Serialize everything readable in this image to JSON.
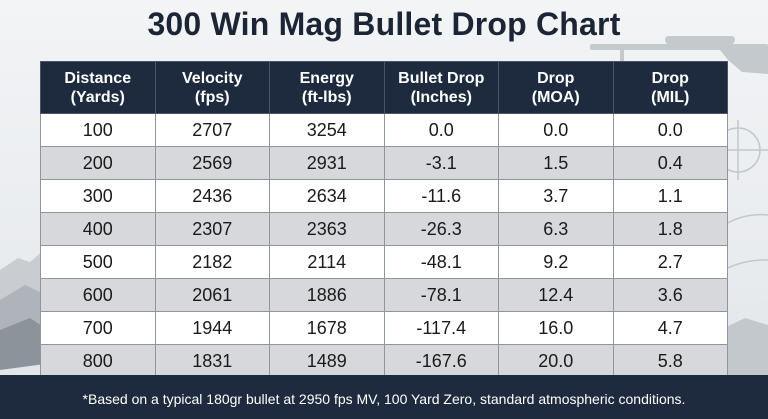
{
  "chart_data": {
    "type": "table",
    "title": "300 Win Mag Bullet Drop Chart",
    "columns": [
      [
        "Distance",
        "(Yards)"
      ],
      [
        "Velocity",
        "(fps)"
      ],
      [
        "Energy",
        "(ft-lbs)"
      ],
      [
        "Bullet Drop",
        "(Inches)"
      ],
      [
        "Drop",
        "(MOA)"
      ],
      [
        "Drop",
        "(MIL)"
      ]
    ],
    "rows": [
      [
        "100",
        "2707",
        "3254",
        "0.0",
        "0.0",
        "0.0"
      ],
      [
        "200",
        "2569",
        "2931",
        "-3.1",
        "1.5",
        "0.4"
      ],
      [
        "300",
        "2436",
        "2634",
        "-11.6",
        "3.7",
        "1.1"
      ],
      [
        "400",
        "2307",
        "2363",
        "-26.3",
        "6.3",
        "1.8"
      ],
      [
        "500",
        "2182",
        "2114",
        "-48.1",
        "9.2",
        "2.7"
      ],
      [
        "600",
        "2061",
        "1886",
        "-78.1",
        "12.4",
        "3.6"
      ],
      [
        "700",
        "1944",
        "1678",
        "-117.4",
        "16.0",
        "4.7"
      ],
      [
        "800",
        "1831",
        "1489",
        "-167.6",
        "20.0",
        "5.8"
      ]
    ],
    "footnote": "*Based on a typical 180gr bullet at 2950 fps MV, 100 Yard Zero, standard atmospheric conditions."
  },
  "colors": {
    "header_bg": "#1e2a3d",
    "row_odd": "#ffffff",
    "row_even": "#d6d8db",
    "title": "#1c2536"
  },
  "decor_icons": [
    "rifle-icon",
    "crosshair-icon",
    "mountains-icon"
  ]
}
